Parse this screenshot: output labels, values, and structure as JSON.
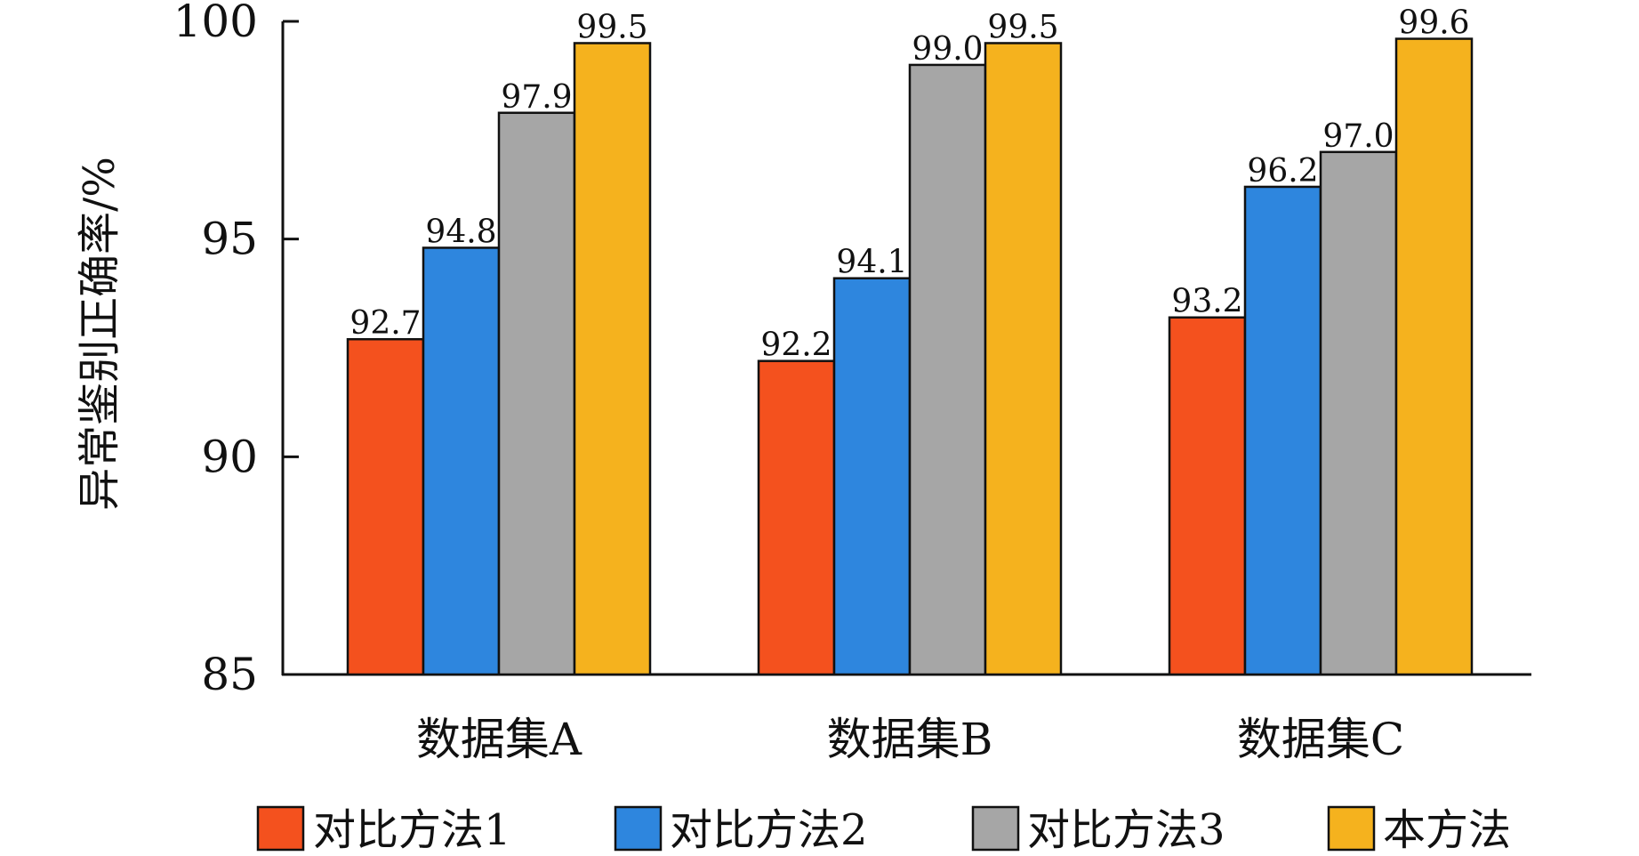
{
  "chart_data": {
    "type": "bar",
    "title": "",
    "xlabel": "",
    "ylabel": "异常鉴别正确率/%",
    "ylim": [
      85,
      100
    ],
    "yticks": [
      85,
      90,
      95,
      100
    ],
    "categories": [
      "数据集A",
      "数据集B",
      "数据集C"
    ],
    "series": [
      {
        "name": "对比方法1",
        "color": "#F4511E",
        "values": [
          92.7,
          92.2,
          93.2
        ],
        "labels": [
          "92.7",
          "92.2",
          "93.2"
        ]
      },
      {
        "name": "对比方法2",
        "color": "#2E86DE",
        "values": [
          94.8,
          94.1,
          96.2
        ],
        "labels": [
          "94.8",
          "94.1",
          "96.2"
        ]
      },
      {
        "name": "对比方法3",
        "color": "#A6A6A6",
        "values": [
          97.9,
          99.0,
          97.0
        ],
        "labels": [
          "97.9",
          "99.0",
          "97.0"
        ]
      },
      {
        "name": "本方法",
        "color": "#F5B21E",
        "values": [
          99.5,
          99.5,
          99.6
        ],
        "labels": [
          "99.5",
          "99.5",
          "99.6"
        ]
      }
    ],
    "legend_position": "bottom",
    "grid": false
  }
}
